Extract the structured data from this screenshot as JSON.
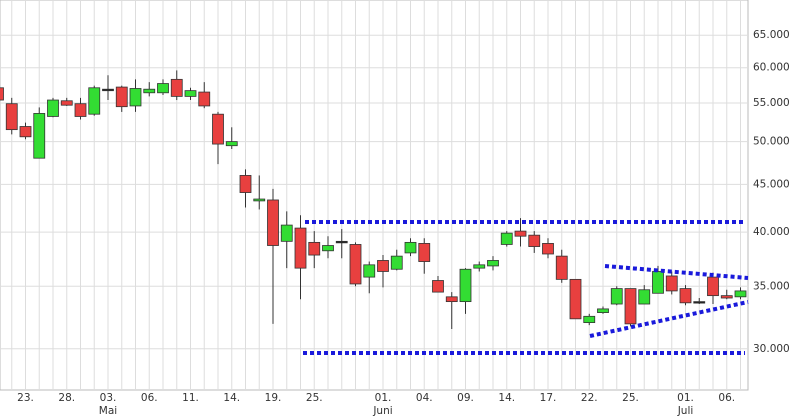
{
  "chart_data": {
    "type": "candlestick",
    "log_scale": true,
    "grid": true,
    "up_color": "#33dd33",
    "down_color": "#e8403f",
    "neutral_color": "#222222",
    "categories": [
      null,
      null,
      "23.",
      null,
      null,
      "28.",
      null,
      null,
      "03.",
      null,
      null,
      "06.",
      null,
      null,
      "11.",
      null,
      null,
      "14.",
      null,
      null,
      "19.",
      null,
      null,
      "25.",
      null,
      null,
      null,
      null,
      "01.",
      null,
      null,
      "04.",
      null,
      null,
      "09.",
      null,
      null,
      "14.",
      null,
      null,
      "17.",
      null,
      null,
      "22.",
      null,
      null,
      "25.",
      null,
      null,
      null,
      "01.",
      null,
      null,
      "06.",
      null
    ],
    "months": [
      null,
      null,
      null,
      null,
      null,
      null,
      null,
      null,
      "Mai",
      null,
      null,
      null,
      null,
      null,
      null,
      null,
      null,
      null,
      null,
      null,
      null,
      null,
      null,
      null,
      null,
      null,
      null,
      null,
      "Juni",
      null,
      null,
      null,
      null,
      null,
      null,
      null,
      null,
      null,
      null,
      null,
      null,
      null,
      null,
      null,
      null,
      null,
      null,
      null,
      null,
      null,
      "Juli",
      null,
      null,
      null,
      null
    ],
    "open": [
      57100,
      54900,
      51900,
      48000,
      53200,
      55300,
      54900,
      53500,
      56900,
      57200,
      54600,
      56400,
      56400,
      58300,
      55900,
      56500,
      53500,
      49500,
      46000,
      43200,
      43300,
      39100,
      40400,
      39000,
      38200,
      39100,
      38800,
      35800,
      37300,
      36500,
      38000,
      38900,
      35500,
      34100,
      33700,
      36600,
      36800,
      38800,
      40100,
      39700,
      38900,
      37700,
      35600,
      32000,
      32800,
      33500,
      34800,
      33500,
      34400,
      35900,
      34800,
      33700,
      35800,
      34200,
      34100
    ],
    "high": [
      57500,
      55700,
      52400,
      54400,
      55700,
      55700,
      55700,
      57400,
      58900,
      57400,
      58300,
      57900,
      58300,
      59600,
      57100,
      57900,
      53800,
      51800,
      46700,
      46000,
      44500,
      42100,
      41700,
      40100,
      39600,
      40300,
      39000,
      37200,
      37800,
      38300,
      39400,
      39400,
      35900,
      34500,
      36600,
      37200,
      37700,
      40100,
      41400,
      40100,
      39400,
      38300,
      35600,
      32700,
      33300,
      35000,
      34800,
      35100,
      36800,
      36300,
      35100,
      34000,
      36200,
      34700,
      34900
    ],
    "low": [
      55100,
      50900,
      50300,
      48000,
      53100,
      54600,
      52800,
      53300,
      55400,
      53800,
      53800,
      55900,
      56100,
      55400,
      55400,
      54300,
      47300,
      49100,
      42500,
      42300,
      31900,
      36600,
      33900,
      36600,
      37500,
      37500,
      35000,
      34400,
      34900,
      36400,
      37700,
      36100,
      34500,
      31500,
      32700,
      36300,
      36400,
      38600,
      38600,
      38000,
      37500,
      35300,
      32300,
      31800,
      32700,
      33400,
      31700,
      33500,
      34400,
      34300,
      33400,
      33500,
      33500,
      33900,
      33900
    ],
    "close": [
      55400,
      51500,
      50600,
      53600,
      55400,
      54700,
      53200,
      57100,
      56900,
      54500,
      57000,
      56900,
      57700,
      55900,
      56700,
      54600,
      49700,
      50000,
      44100,
      43400,
      38700,
      40700,
      36600,
      37800,
      38700,
      39100,
      35200,
      36900,
      36300,
      37700,
      39000,
      37200,
      34500,
      33700,
      36500,
      36900,
      37300,
      39900,
      39600,
      38600,
      37900,
      35600,
      32300,
      32500,
      33100,
      34800,
      31900,
      34700,
      36300,
      34600,
      33600,
      33700,
      34200,
      34000,
      34600
    ],
    "ylim": [
      27100,
      70900
    ],
    "yticks": [
      {
        "value": 30000,
        "label": "30.000"
      },
      {
        "value": 35000,
        "label": "35.000"
      },
      {
        "value": 40000,
        "label": "40.000"
      },
      {
        "value": 45000,
        "label": "45.000"
      },
      {
        "value": 50000,
        "label": "50.000"
      },
      {
        "value": 55000,
        "label": "55.000"
      },
      {
        "value": 60000,
        "label": "60.000"
      },
      {
        "value": 65000,
        "label": "65.000"
      }
    ]
  }
}
